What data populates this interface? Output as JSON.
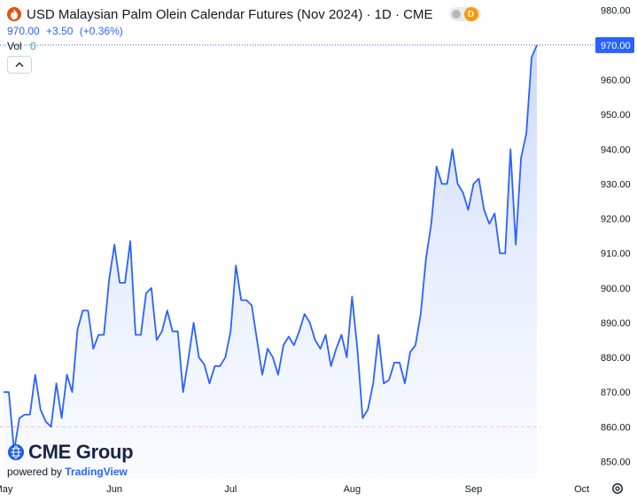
{
  "header": {
    "title": "USD Malaysian Palm Olein Calendar Futures (Nov 2024) · 1D · CME",
    "pill_letter": "D",
    "last_price": "970.00",
    "change": "+3.50",
    "change_pct": "(+0.36%)",
    "volume_label": "Vol",
    "volume_value": "0"
  },
  "branding": {
    "logo_text": "CME Group",
    "powered_by": "powered by",
    "provider": "TradingView"
  },
  "colors": {
    "line": "#2962ff",
    "area_top": "#c9d6fb",
    "area_bottom": "#eef3ff",
    "price_tag": "#2962ff",
    "reference_line": "#f08080",
    "axis_text": "#131722",
    "logo_icon": "#1a5ce6"
  },
  "icons": [
    "flame-icon",
    "chevron-up-icon",
    "settings-icon",
    "cme-globe-icon"
  ],
  "chart_data": {
    "type": "area",
    "title": "USD Malaysian Palm Olein Calendar Futures (Nov 2024) · 1D · CME",
    "xlabel": "",
    "ylabel": "",
    "ylim": [
      845,
      983
    ],
    "y_ticks": [
      "980.00",
      "970.00",
      "960.00",
      "950.00",
      "940.00",
      "930.00",
      "920.00",
      "910.00",
      "900.00",
      "890.00",
      "880.00",
      "870.00",
      "860.00",
      "850.00"
    ],
    "x_ticks": [
      "May",
      "Jun",
      "Jul",
      "Aug",
      "Sep",
      "Oct"
    ],
    "last_value_label": "970.00",
    "reference_value": 860,
    "grid": false,
    "series": [
      {
        "values": [
          870,
          870,
          853,
          862.5,
          863.5,
          863.5,
          875,
          865,
          861.5,
          860,
          872.5,
          862.5,
          875,
          870,
          888,
          893.5,
          893.5,
          882.5,
          886.5,
          886.5,
          902.5,
          912.5,
          901.5,
          901.5,
          913.5,
          886.5,
          886.5,
          898.5,
          900,
          885,
          887.5,
          893.5,
          887.5,
          887.5,
          870,
          879.5,
          890,
          880,
          878,
          872.5,
          877.5,
          877.5,
          880,
          887.5,
          906.5,
          896.5,
          896.5,
          895,
          885,
          875,
          882.5,
          880,
          875,
          883.5,
          886,
          883.5,
          887.5,
          892.5,
          890,
          885,
          882.5,
          886.5,
          877.5,
          882.5,
          886.5,
          880,
          897.5,
          882.5,
          862.5,
          865,
          872.5,
          886.5,
          872.5,
          873.5,
          878.5,
          878.5,
          872.5,
          881.5,
          883.5,
          892.5,
          908.5,
          918.5,
          935,
          930,
          930,
          940,
          930,
          927.5,
          922.5,
          930,
          931.5,
          922.5,
          918.5,
          921.5,
          910,
          910,
          940,
          912.5,
          937.5,
          944.5,
          966.5,
          970
        ]
      }
    ]
  }
}
